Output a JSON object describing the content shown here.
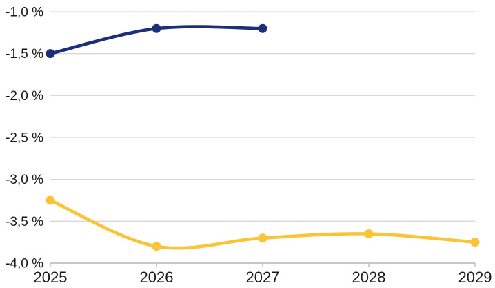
{
  "chart_data": {
    "type": "line",
    "smoothed": true,
    "title": "",
    "xlabel": "",
    "ylabel": "",
    "categories": [
      "2025",
      "2026",
      "2027",
      "2028",
      "2029"
    ],
    "x": [
      2025,
      2026,
      2027,
      2028,
      2029
    ],
    "series": [
      {
        "name": "dark-blue-line",
        "color": "#1B2E77",
        "x": [
          2025,
          2026,
          2027
        ],
        "values": [
          -1.5,
          -1.2,
          -1.2
        ]
      },
      {
        "name": "yellow-line",
        "color": "#FBC437",
        "x": [
          2025,
          2026,
          2027,
          2028,
          2029
        ],
        "values": [
          -3.25,
          -3.8,
          -3.7,
          -3.65,
          -3.75
        ]
      }
    ],
    "ylim": [
      -4.0,
      -1.0
    ],
    "ytick_step": 0.5,
    "yticks": [
      -1.0,
      -1.5,
      -2.0,
      -2.5,
      -3.0,
      -3.5,
      -4.0
    ],
    "ytick_labels": [
      "-1,0 %",
      "-1,5 %",
      "-2,0 %",
      "-2,5 %",
      "-3,0 %",
      "-3,5 %",
      "-4,0 %"
    ],
    "grid": true,
    "legend": "none",
    "marker": "circle"
  },
  "colors": {
    "background": "#FFFFFF",
    "gridline": "#D9D9D9",
    "axis": "#BFBFBF",
    "text": "#1A1A1A"
  }
}
